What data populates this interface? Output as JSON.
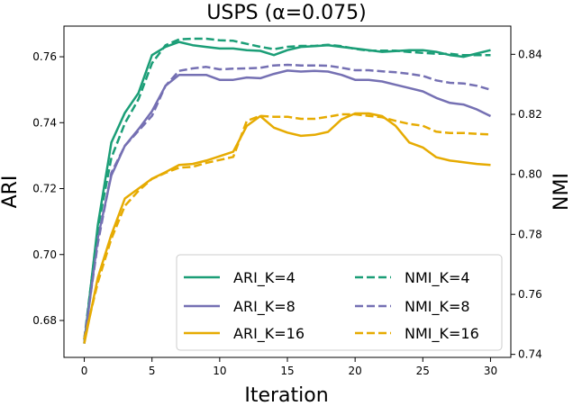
{
  "chart_data": {
    "type": "line",
    "title": "USPS (α=0.075)",
    "xlabel": "Iteration",
    "ylabel_left": "ARI",
    "ylabel_right": "NMI",
    "xlim": [
      -1.5,
      31.5
    ],
    "ylim_left": [
      0.6688,
      0.7693
    ],
    "ylim_right": [
      0.739,
      0.8494
    ],
    "xticks": [
      0,
      5,
      10,
      15,
      20,
      25,
      30
    ],
    "yticks_left": [
      0.68,
      0.7,
      0.72,
      0.74,
      0.76
    ],
    "yticks_right": [
      0.74,
      0.76,
      0.78,
      0.8,
      0.82,
      0.84
    ],
    "grid": false,
    "legend_position": "lower-right",
    "colors": {
      "K4": "#1b9e77",
      "K8": "#7570b3",
      "K16": "#e6ab02"
    },
    "x": [
      0,
      1,
      2,
      3,
      4,
      5,
      6,
      7,
      8,
      9,
      10,
      11,
      12,
      13,
      14,
      15,
      16,
      17,
      18,
      19,
      20,
      21,
      22,
      23,
      24,
      25,
      26,
      27,
      28,
      29,
      30
    ],
    "series": [
      {
        "name": "ARI_K=4",
        "axis": "left",
        "style": "solid",
        "color": "#1b9e77",
        "values": [
          0.673,
          0.709,
          0.734,
          0.743,
          0.749,
          0.7605,
          0.763,
          0.7645,
          0.7635,
          0.763,
          0.7625,
          0.7625,
          0.762,
          0.7618,
          0.7605,
          0.762,
          0.763,
          0.7632,
          0.7635,
          0.763,
          0.7625,
          0.762,
          0.7615,
          0.7617,
          0.762,
          0.762,
          0.7615,
          0.7605,
          0.76,
          0.761,
          0.762
        ]
      },
      {
        "name": "ARI_K=8",
        "axis": "left",
        "style": "solid",
        "color": "#7570b3",
        "values": [
          0.673,
          0.705,
          0.724,
          0.733,
          0.738,
          0.7435,
          0.7512,
          0.7545,
          0.7545,
          0.7545,
          0.753,
          0.753,
          0.7537,
          0.7535,
          0.7548,
          0.7558,
          0.7555,
          0.7557,
          0.7555,
          0.7545,
          0.753,
          0.753,
          0.7525,
          0.7515,
          0.7505,
          0.7495,
          0.7475,
          0.746,
          0.7455,
          0.744,
          0.742
        ]
      },
      {
        "name": "ARI_K=16",
        "axis": "left",
        "style": "solid",
        "color": "#e6ab02",
        "values": [
          0.673,
          0.693,
          0.706,
          0.717,
          0.72,
          0.723,
          0.725,
          0.7272,
          0.7275,
          0.7285,
          0.7298,
          0.7312,
          0.739,
          0.742,
          0.7385,
          0.737,
          0.736,
          0.7363,
          0.7372,
          0.741,
          0.7428,
          0.7428,
          0.742,
          0.739,
          0.734,
          0.7325,
          0.7295,
          0.7285,
          0.728,
          0.7275,
          0.7272
        ]
      },
      {
        "name": "NMI_K=4",
        "axis": "right",
        "style": "dashed",
        "color": "#1b9e77",
        "values": [
          0.745,
          0.782,
          0.8055,
          0.817,
          0.825,
          0.837,
          0.843,
          0.845,
          0.8452,
          0.8452,
          0.8447,
          0.8445,
          0.8435,
          0.8425,
          0.8417,
          0.8425,
          0.8428,
          0.8428,
          0.8432,
          0.8427,
          0.8418,
          0.8412,
          0.8412,
          0.8412,
          0.8408,
          0.8405,
          0.8402,
          0.8402,
          0.8397,
          0.8397,
          0.8397
        ]
      },
      {
        "name": "NMI_K=8",
        "axis": "right",
        "style": "dashed",
        "color": "#7570b3",
        "values": [
          0.745,
          0.777,
          0.8005,
          0.8095,
          0.8145,
          0.8195,
          0.8295,
          0.8345,
          0.8353,
          0.8358,
          0.835,
          0.8352,
          0.8353,
          0.8355,
          0.8363,
          0.8365,
          0.8363,
          0.8363,
          0.8362,
          0.8355,
          0.8347,
          0.8347,
          0.8343,
          0.834,
          0.8335,
          0.8328,
          0.8313,
          0.8305,
          0.8303,
          0.8295,
          0.8282
        ]
      },
      {
        "name": "NMI_K=16",
        "axis": "right",
        "style": "dashed",
        "color": "#e6ab02",
        "values": [
          0.745,
          0.764,
          0.7785,
          0.7895,
          0.7945,
          0.7985,
          0.8005,
          0.8022,
          0.8025,
          0.8038,
          0.8048,
          0.8058,
          0.8178,
          0.8195,
          0.8192,
          0.8192,
          0.8185,
          0.8185,
          0.8192,
          0.82,
          0.82,
          0.8195,
          0.819,
          0.8178,
          0.8168,
          0.8162,
          0.8142,
          0.8138,
          0.8138,
          0.8135,
          0.8133
        ]
      }
    ],
    "legend": {
      "columns": [
        [
          "ARI_K=4",
          "ARI_K=8",
          "ARI_K=16"
        ],
        [
          "NMI_K=4",
          "NMI_K=8",
          "NMI_K=16"
        ]
      ]
    }
  }
}
